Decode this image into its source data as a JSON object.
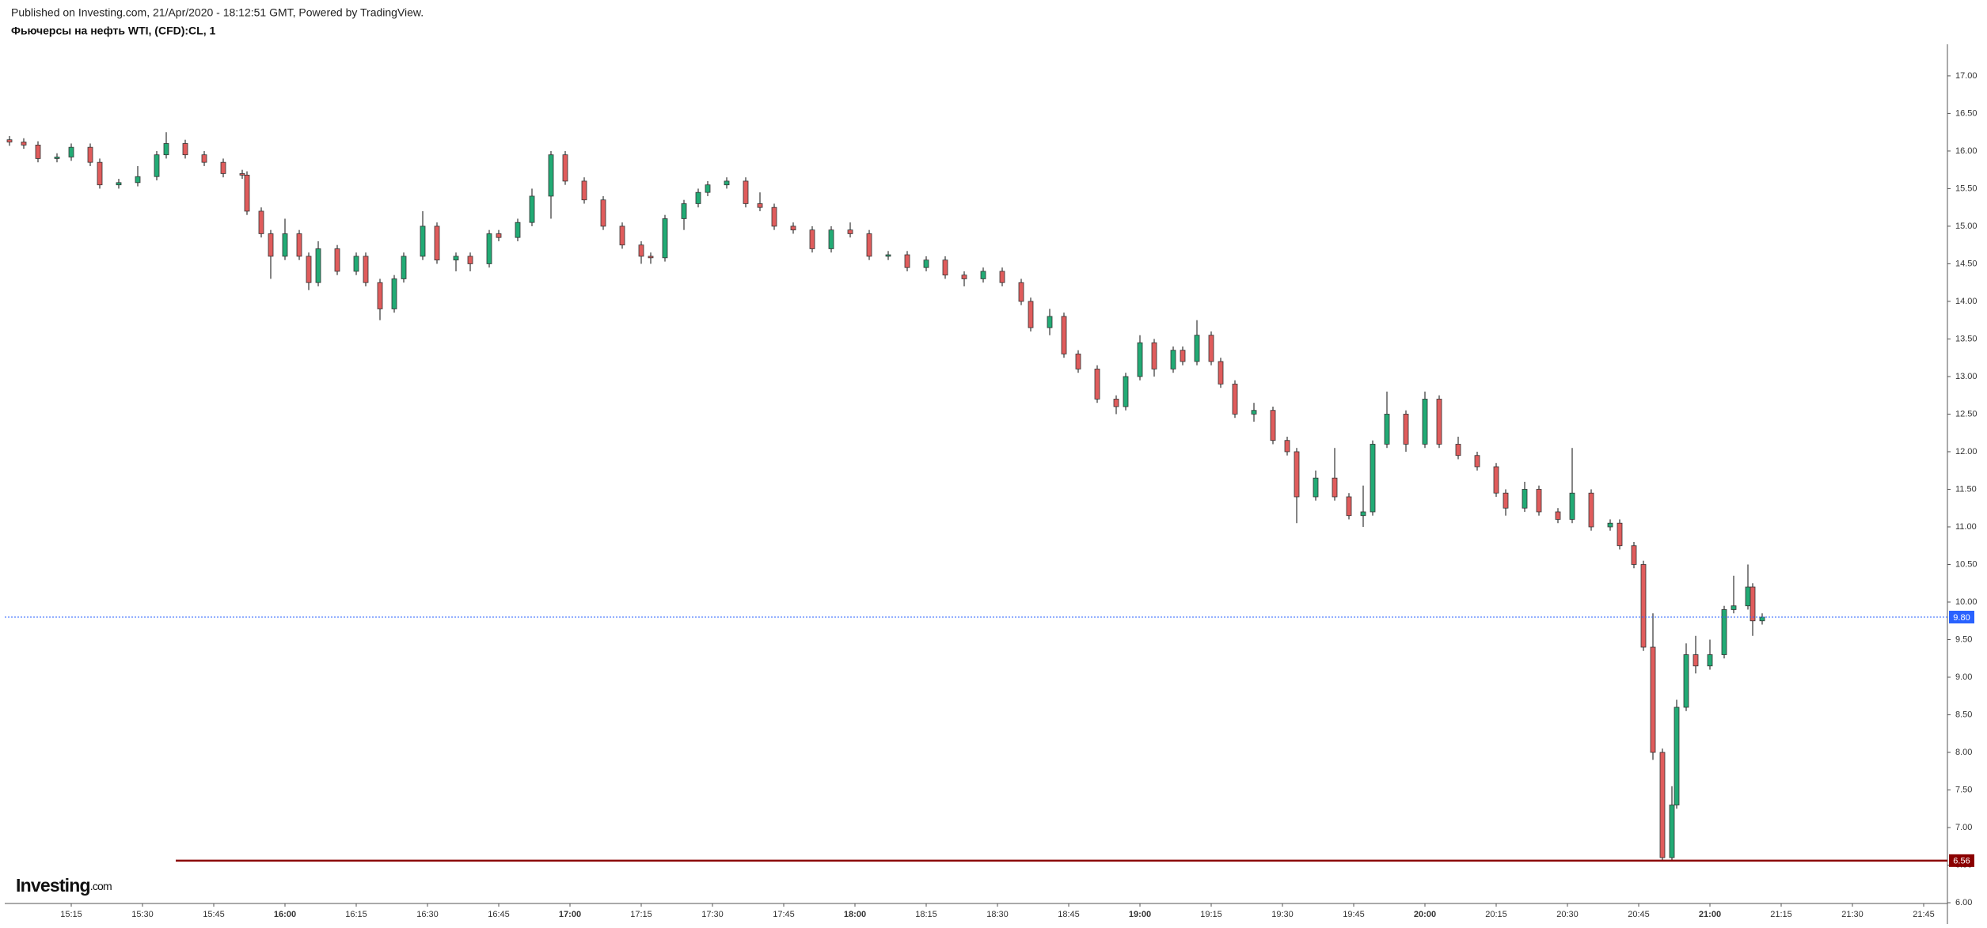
{
  "header": {
    "published": "Published on Investing.com, 21/Apr/2020 - 18:12:51 GMT, Powered by TradingView.",
    "title": "Фьючерсы на нефть WTI, (CFD):CL, 1"
  },
  "logo": {
    "name": "Investing",
    "suffix": ".com"
  },
  "chart_data": {
    "type": "candlestick",
    "up_color": "#22ab75",
    "down_color": "#e05c5c",
    "x": [
      "15:02",
      "15:05",
      "15:08",
      "15:12",
      "15:15",
      "15:19",
      "15:21",
      "15:25",
      "15:29",
      "15:33",
      "15:35",
      "15:39",
      "15:43",
      "15:47",
      "15:51",
      "15:52",
      "15:55",
      "15:57",
      "16:00",
      "16:03",
      "16:05",
      "16:07",
      "16:11",
      "16:15",
      "16:17",
      "16:20",
      "16:23",
      "16:25",
      "16:29",
      "16:32",
      "16:36",
      "16:39",
      "16:43",
      "16:45",
      "16:49",
      "16:52",
      "16:56",
      "16:59",
      "17:03",
      "17:07",
      "17:11",
      "17:15",
      "17:17",
      "17:20",
      "17:24",
      "17:27",
      "17:29",
      "17:33",
      "17:37",
      "17:40",
      "17:43",
      "17:47",
      "17:51",
      "17:55",
      "17:59",
      "18:03",
      "18:07",
      "18:11",
      "18:15",
      "18:19",
      "18:23",
      "18:27",
      "18:31",
      "18:35",
      "18:37",
      "18:41",
      "18:44",
      "18:47",
      "18:51",
      "18:55",
      "18:57",
      "19:00",
      "19:03",
      "19:07",
      "19:09",
      "19:12",
      "19:15",
      "19:17",
      "19:20",
      "19:24",
      "19:28",
      "19:31",
      "19:33",
      "19:37",
      "19:41",
      "19:44",
      "19:47",
      "19:49",
      "19:52",
      "19:56",
      "20:00",
      "20:03",
      "20:07",
      "20:11",
      "20:15",
      "20:17",
      "20:21",
      "20:24",
      "20:28",
      "20:31",
      "20:35",
      "20:39",
      "20:41",
      "20:44",
      "20:46",
      "20:48",
      "20:50",
      "20:52",
      "20:53",
      "20:55",
      "20:57",
      "21:00",
      "21:03",
      "21:05",
      "21:08",
      "21:09",
      "21:11"
    ],
    "open": [
      16.15,
      16.12,
      16.08,
      15.9,
      15.92,
      16.05,
      15.85,
      15.55,
      15.58,
      15.66,
      15.95,
      16.1,
      15.95,
      15.85,
      15.7,
      15.68,
      15.2,
      14.9,
      14.6,
      14.9,
      14.6,
      14.25,
      14.7,
      14.4,
      14.6,
      14.25,
      13.9,
      14.3,
      14.6,
      15.0,
      14.55,
      14.6,
      14.5,
      14.9,
      14.85,
      15.05,
      15.4,
      15.95,
      15.6,
      15.35,
      15.0,
      14.75,
      14.6,
      14.58,
      15.1,
      15.3,
      15.45,
      15.55,
      15.6,
      15.3,
      15.25,
      15.0,
      14.95,
      14.7,
      14.95,
      14.9,
      14.6,
      14.62,
      14.45,
      14.55,
      14.35,
      14.3,
      14.4,
      14.25,
      14.0,
      13.65,
      13.8,
      13.3,
      13.1,
      12.7,
      12.6,
      13.0,
      13.45,
      13.1,
      13.35,
      13.2,
      13.55,
      13.2,
      12.9,
      12.5,
      12.55,
      12.15,
      12.0,
      11.4,
      11.65,
      11.4,
      11.15,
      11.2,
      12.1,
      12.5,
      12.1,
      12.7,
      12.1,
      11.95,
      11.8,
      11.45,
      11.25,
      11.5,
      11.2,
      11.1,
      11.45,
      11.0,
      11.05,
      10.75,
      10.5,
      9.4,
      8.0,
      6.6,
      7.3,
      8.6,
      9.3,
      9.15,
      9.3,
      9.9,
      9.95,
      10.2,
      9.75
    ],
    "high": [
      16.2,
      16.17,
      16.13,
      15.97,
      16.1,
      16.1,
      15.9,
      15.63,
      15.8,
      16.0,
      16.25,
      16.15,
      16.0,
      15.9,
      15.75,
      15.73,
      15.25,
      14.95,
      15.1,
      14.95,
      14.65,
      14.8,
      14.75,
      14.65,
      14.65,
      14.3,
      14.35,
      14.65,
      15.2,
      15.05,
      14.65,
      14.65,
      14.95,
      14.95,
      15.1,
      15.5,
      16.0,
      16.0,
      15.65,
      15.4,
      15.05,
      14.8,
      14.65,
      15.15,
      15.35,
      15.5,
      15.6,
      15.65,
      15.65,
      15.45,
      15.3,
      15.05,
      15.0,
      15.0,
      15.05,
      14.95,
      14.67,
      14.67,
      14.6,
      14.6,
      14.4,
      14.45,
      14.45,
      14.3,
      14.05,
      13.9,
      13.85,
      13.35,
      13.15,
      12.75,
      13.05,
      13.55,
      13.5,
      13.4,
      13.4,
      13.75,
      13.6,
      13.25,
      12.95,
      12.65,
      12.6,
      12.2,
      12.05,
      11.75,
      12.05,
      11.45,
      11.55,
      12.15,
      12.8,
      12.55,
      12.8,
      12.75,
      12.2,
      12.0,
      11.85,
      11.5,
      11.6,
      11.55,
      11.25,
      12.05,
      11.5,
      11.1,
      11.1,
      10.8,
      10.55,
      9.85,
      8.05,
      7.55,
      8.7,
      9.45,
      9.55,
      9.5,
      9.95,
      10.35,
      10.5,
      10.25,
      9.85
    ],
    "low": [
      16.07,
      16.03,
      15.85,
      15.85,
      15.87,
      15.8,
      15.5,
      15.5,
      15.53,
      15.61,
      15.9,
      15.9,
      15.8,
      15.65,
      15.63,
      15.15,
      14.85,
      14.3,
      14.55,
      14.55,
      14.15,
      14.2,
      14.35,
      14.35,
      14.2,
      13.75,
      13.85,
      14.25,
      14.55,
      14.5,
      14.4,
      14.4,
      14.45,
      14.8,
      14.8,
      15.0,
      15.1,
      15.55,
      15.3,
      14.95,
      14.7,
      14.5,
      14.5,
      14.53,
      14.95,
      15.25,
      15.4,
      15.5,
      15.25,
      15.2,
      14.95,
      14.9,
      14.65,
      14.65,
      14.85,
      14.55,
      14.55,
      14.4,
      14.4,
      14.3,
      14.2,
      14.25,
      14.2,
      13.95,
      13.6,
      13.55,
      13.25,
      13.05,
      12.65,
      12.5,
      12.55,
      12.95,
      13.0,
      13.05,
      13.15,
      13.15,
      13.15,
      12.85,
      12.45,
      12.4,
      12.1,
      11.95,
      11.05,
      11.35,
      11.35,
      11.1,
      11.0,
      11.15,
      12.05,
      12.0,
      12.05,
      12.05,
      11.9,
      11.75,
      11.4,
      11.15,
      11.2,
      11.15,
      11.05,
      11.05,
      10.95,
      10.95,
      10.7,
      10.45,
      9.35,
      7.9,
      6.56,
      6.56,
      7.25,
      8.55,
      9.05,
      9.1,
      9.25,
      9.85,
      9.9,
      9.55,
      9.7
    ],
    "close": [
      16.12,
      16.08,
      15.9,
      15.92,
      16.05,
      15.85,
      15.55,
      15.58,
      15.66,
      15.95,
      16.1,
      15.95,
      15.85,
      15.7,
      15.68,
      15.2,
      14.9,
      14.6,
      14.9,
      14.6,
      14.25,
      14.7,
      14.4,
      14.6,
      14.25,
      13.9,
      14.3,
      14.6,
      15.0,
      14.55,
      14.6,
      14.5,
      14.9,
      14.85,
      15.05,
      15.4,
      15.95,
      15.6,
      15.35,
      15.0,
      14.75,
      14.6,
      14.58,
      15.1,
      15.3,
      15.45,
      15.55,
      15.6,
      15.3,
      15.25,
      15.0,
      14.95,
      14.7,
      14.95,
      14.9,
      14.6,
      14.62,
      14.45,
      14.55,
      14.35,
      14.3,
      14.4,
      14.25,
      14.0,
      13.65,
      13.8,
      13.3,
      13.1,
      12.7,
      12.6,
      13.0,
      13.45,
      13.1,
      13.35,
      13.2,
      13.55,
      13.2,
      12.9,
      12.5,
      12.55,
      12.15,
      12.0,
      11.4,
      11.65,
      11.4,
      11.15,
      11.2,
      12.1,
      12.5,
      12.1,
      12.7,
      12.1,
      11.95,
      11.8,
      11.45,
      11.25,
      11.5,
      11.2,
      11.1,
      11.45,
      11.0,
      11.05,
      10.75,
      10.5,
      9.4,
      8.0,
      6.6,
      7.3,
      8.6,
      9.3,
      9.15,
      9.3,
      9.9,
      9.95,
      10.2,
      9.75,
      9.8
    ],
    "xlim": [
      "15:01",
      "21:50"
    ],
    "xticks": [
      "15:15",
      "15:30",
      "15:45",
      "16:00",
      "16:15",
      "16:30",
      "16:45",
      "17:00",
      "17:15",
      "17:30",
      "17:45",
      "18:00",
      "18:15",
      "18:30",
      "18:45",
      "19:00",
      "19:15",
      "19:30",
      "19:45",
      "20:00",
      "20:15",
      "20:30",
      "20:45",
      "21:00",
      "21:15",
      "21:30",
      "21:45"
    ],
    "ylim": [
      5.99,
      17.42
    ],
    "yticks": [
      {
        "value": 6,
        "label": "6.00"
      },
      {
        "value": 6.5,
        "label": "6.50"
      },
      {
        "value": 7,
        "label": "7.00"
      },
      {
        "value": 7.5,
        "label": "7.50"
      },
      {
        "value": 8,
        "label": "8.00"
      },
      {
        "value": 8.5,
        "label": "8.50"
      },
      {
        "value": 9,
        "label": "9.00"
      },
      {
        "value": 9.5,
        "label": "9.50"
      },
      {
        "value": 10,
        "label": "10.00"
      },
      {
        "value": 10.5,
        "label": "10.50"
      },
      {
        "value": 11,
        "label": "11.00"
      },
      {
        "value": 11.5,
        "label": "11.50"
      },
      {
        "value": 12,
        "label": "12.00"
      },
      {
        "value": 12.5,
        "label": "12.50"
      },
      {
        "value": 13,
        "label": "13.00"
      },
      {
        "value": 13.5,
        "label": "13.50"
      },
      {
        "value": 14,
        "label": "14.00"
      },
      {
        "value": 14.5,
        "label": "14.50"
      },
      {
        "value": 15,
        "label": "15.00"
      },
      {
        "value": 15.5,
        "label": "15.50"
      },
      {
        "value": 16,
        "label": "16.00"
      },
      {
        "value": 16.5,
        "label": "16.50"
      },
      {
        "value": 17,
        "label": "17.00"
      }
    ],
    "price_lines": [
      {
        "value": 9.8,
        "label": "9.80",
        "color": "#2962ff",
        "style": "dotted",
        "from": "15:01"
      },
      {
        "value": 6.56,
        "label": "6.56",
        "color": "#8b0000",
        "style": "solid",
        "from": "15:37"
      }
    ]
  }
}
